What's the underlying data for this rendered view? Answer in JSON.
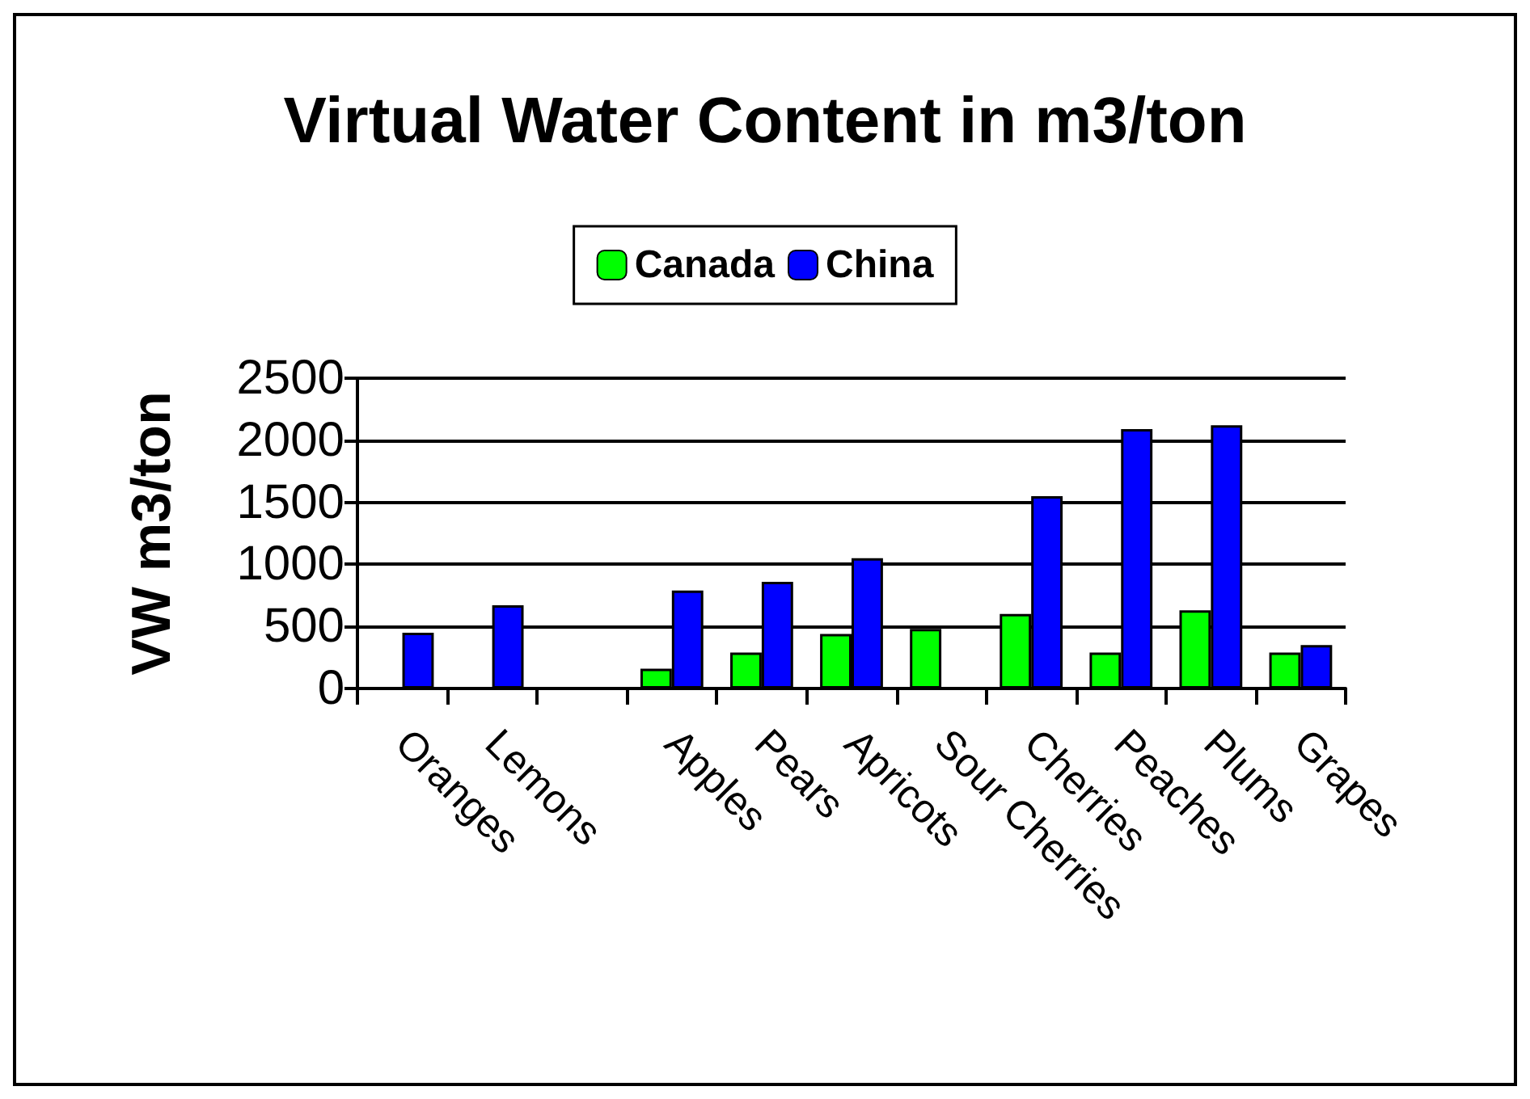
{
  "chart_data": {
    "type": "bar",
    "title": "Virtual Water Content in m3/ton",
    "ylabel": "VW m3/ton",
    "categories": [
      "Oranges",
      "Lemons",
      null,
      "Apples",
      "Pears",
      "Apricots",
      "Sour Cherries",
      "Cherries",
      "Peaches",
      "Plums",
      "Grapes"
    ],
    "series": [
      {
        "name": "Canada",
        "color": "#00ff00",
        "values": [
          null,
          null,
          null,
          160,
          290,
          440,
          480,
          600,
          290,
          630,
          290
        ]
      },
      {
        "name": "China",
        "color": "#0000ff",
        "values": [
          450,
          670,
          null,
          790,
          860,
          1050,
          null,
          1550,
          2090,
          2120,
          350
        ]
      }
    ],
    "ylim": [
      0,
      2500
    ],
    "yticks": [
      0,
      500,
      1000,
      1500,
      2000,
      2500
    ],
    "grid": "y",
    "legend": "top"
  }
}
